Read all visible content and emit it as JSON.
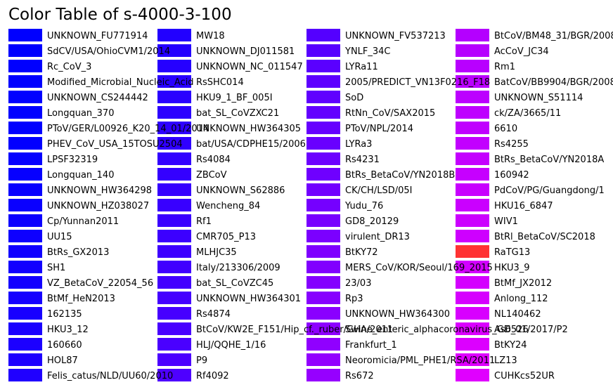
{
  "chart_data": {
    "type": "table",
    "title": "Color Table of s-4000-3-100",
    "columns": [
      [
        {
          "name": "UNKNOWN_FU771914",
          "color": "#0000ff"
        },
        {
          "name": "SdCV/USA/OhioCVM1/2014",
          "color": "#0000ff"
        },
        {
          "name": "Rc_CoV_3",
          "color": "#0000ff"
        },
        {
          "name": "Modified_Microbial_Nucleic_Acid",
          "color": "#0000ff"
        },
        {
          "name": "UNKNOWN_CS244442",
          "color": "#0000ff"
        },
        {
          "name": "Longquan_370",
          "color": "#0000ff"
        },
        {
          "name": "PToV/GER/L00926_K20_14_01/2014",
          "color": "#0000ff"
        },
        {
          "name": "PHEV_CoV_USA_15TOSU2504",
          "color": "#0200ff"
        },
        {
          "name": "LPSF32319",
          "color": "#0400ff"
        },
        {
          "name": "Longquan_140",
          "color": "#0600ff"
        },
        {
          "name": "UNKNOWN_HW364298",
          "color": "#0800ff"
        },
        {
          "name": "UNKNOWN_HZ038027",
          "color": "#0a00ff"
        },
        {
          "name": "Cp/Yunnan2011",
          "color": "#0c00ff"
        },
        {
          "name": "UU15",
          "color": "#0e00ff"
        },
        {
          "name": "BtRs_GX2013",
          "color": "#1000ff"
        },
        {
          "name": "SH1",
          "color": "#1200ff"
        },
        {
          "name": "VZ_BetaCoV_22054_56",
          "color": "#1400ff"
        },
        {
          "name": "BtMf_HeN2013",
          "color": "#1600ff"
        },
        {
          "name": "162135",
          "color": "#1800ff"
        },
        {
          "name": "HKU3_12",
          "color": "#1a00ff"
        },
        {
          "name": "160660",
          "color": "#1c00ff"
        },
        {
          "name": "HOL87",
          "color": "#1e00ff"
        },
        {
          "name": "Felis_catus/NLD/UU60/2010",
          "color": "#2000ff"
        }
      ],
      [
        {
          "name": "MW18",
          "color": "#2200ff"
        },
        {
          "name": "UNKNOWN_DJ011581",
          "color": "#2400ff"
        },
        {
          "name": "UNKNOWN_NC_011547",
          "color": "#2600ff"
        },
        {
          "name": "RsSHC014",
          "color": "#2800ff"
        },
        {
          "name": "HKU9_1_BF_005I",
          "color": "#2a00ff"
        },
        {
          "name": "bat_SL_CoVZXC21",
          "color": "#2c00ff"
        },
        {
          "name": "UNKNOWN_HW364305",
          "color": "#2e00ff"
        },
        {
          "name": "bat/USA/CDPHE15/2006",
          "color": "#3000ff"
        },
        {
          "name": "Rs4084",
          "color": "#3200ff"
        },
        {
          "name": "ZBCoV",
          "color": "#3400ff"
        },
        {
          "name": "UNKNOWN_S62886",
          "color": "#3600ff"
        },
        {
          "name": "Wencheng_84",
          "color": "#3800ff"
        },
        {
          "name": "Rf1",
          "color": "#3a00ff"
        },
        {
          "name": "CMR705_P13",
          "color": "#3c00ff"
        },
        {
          "name": "MLHJC35",
          "color": "#3e00ff"
        },
        {
          "name": "Italy/213306/2009",
          "color": "#4000ff"
        },
        {
          "name": "bat_SL_CoVZC45",
          "color": "#4200ff"
        },
        {
          "name": "UNKNOWN_HW364301",
          "color": "#4400ff"
        },
        {
          "name": "Rs4874",
          "color": "#4600ff"
        },
        {
          "name": "BtCoV/KW2E_F151/Hip_cf._ruber/GHA/2011",
          "color": "#4800ff"
        },
        {
          "name": "HLJ/QQHE_1/16",
          "color": "#4a00ff"
        },
        {
          "name": "P9",
          "color": "#4c00ff"
        },
        {
          "name": "Rf4092",
          "color": "#4e00ff"
        }
      ],
      [
        {
          "name": "UNKNOWN_FV537213",
          "color": "#5400ff"
        },
        {
          "name": "YNLF_34C",
          "color": "#5700ff"
        },
        {
          "name": "LYRa11",
          "color": "#5a00ff"
        },
        {
          "name": "2005/PREDICT_VN13F0216_F18",
          "color": "#5d00ff"
        },
        {
          "name": "SoD",
          "color": "#6000ff"
        },
        {
          "name": "RtNn_CoV/SAX2015",
          "color": "#6300ff"
        },
        {
          "name": "PToV/NPL/2014",
          "color": "#6600ff"
        },
        {
          "name": "LYRa3",
          "color": "#6900ff"
        },
        {
          "name": "Rs4231",
          "color": "#6c00ff"
        },
        {
          "name": "BtRs_BetaCoV/YN2018B",
          "color": "#6f00ff"
        },
        {
          "name": "CK/CH/LSD/05I",
          "color": "#7200ff"
        },
        {
          "name": "Yudu_76",
          "color": "#7500ff"
        },
        {
          "name": "GD8_20129",
          "color": "#7800ff"
        },
        {
          "name": "virulent_DR13",
          "color": "#7b00ff"
        },
        {
          "name": "BtKY72",
          "color": "#7e00ff"
        },
        {
          "name": "MERS_CoV/KOR/Seoul/169_2015",
          "color": "#8100ff"
        },
        {
          "name": "23/03",
          "color": "#8400ff"
        },
        {
          "name": "Rp3",
          "color": "#8700ff"
        },
        {
          "name": "UNKNOWN_HW364300",
          "color": "#8a00ff"
        },
        {
          "name": "Swine_enteric_alphacoronavirus_GD_01/2017/P2",
          "color": "#8d00ff"
        },
        {
          "name": "Frankfurt_1",
          "color": "#9000ff"
        },
        {
          "name": "Neoromicia/PML_PHE1/RSA/2011",
          "color": "#9300ff"
        },
        {
          "name": "Rs672",
          "color": "#9600ff"
        }
      ],
      [
        {
          "name": "BtCoV/BM48_31/BGR/2008",
          "color": "#b400ff"
        },
        {
          "name": "AcCoV_JC34",
          "color": "#b600ff"
        },
        {
          "name": "Rm1",
          "color": "#b800ff"
        },
        {
          "name": "BatCoV/BB9904/BGR/2008",
          "color": "#ba00ff"
        },
        {
          "name": "UNKNOWN_S51114",
          "color": "#bc00ff"
        },
        {
          "name": "ck/ZA/3665/11",
          "color": "#be00ff"
        },
        {
          "name": "6610",
          "color": "#c000ff"
        },
        {
          "name": "Rs4255",
          "color": "#c200ff"
        },
        {
          "name": "BtRs_BetaCoV/YN2018A",
          "color": "#c400ff"
        },
        {
          "name": "160942",
          "color": "#c600ff"
        },
        {
          "name": "PdCoV/PG/Guangdong/1",
          "color": "#c800ff"
        },
        {
          "name": "HKU16_6847",
          "color": "#ca00ff"
        },
        {
          "name": "WIV1",
          "color": "#cc00ff"
        },
        {
          "name": "BtRl_BetaCoV/SC2018",
          "color": "#ce00ff"
        },
        {
          "name": "RaTG13",
          "color": "#ff3333"
        },
        {
          "name": "HKU3_9",
          "color": "#d200ff"
        },
        {
          "name": "BtMf_JX2012",
          "color": "#d400ff"
        },
        {
          "name": "Anlong_112",
          "color": "#d600ff"
        },
        {
          "name": "NL140462",
          "color": "#d800ff"
        },
        {
          "name": "As6526",
          "color": "#da00ff"
        },
        {
          "name": "BtKY24",
          "color": "#dc00ff"
        },
        {
          "name": "LZ13",
          "color": "#de00ff"
        },
        {
          "name": "CUHKcs52UR",
          "color": "#e000ff"
        }
      ]
    ]
  }
}
